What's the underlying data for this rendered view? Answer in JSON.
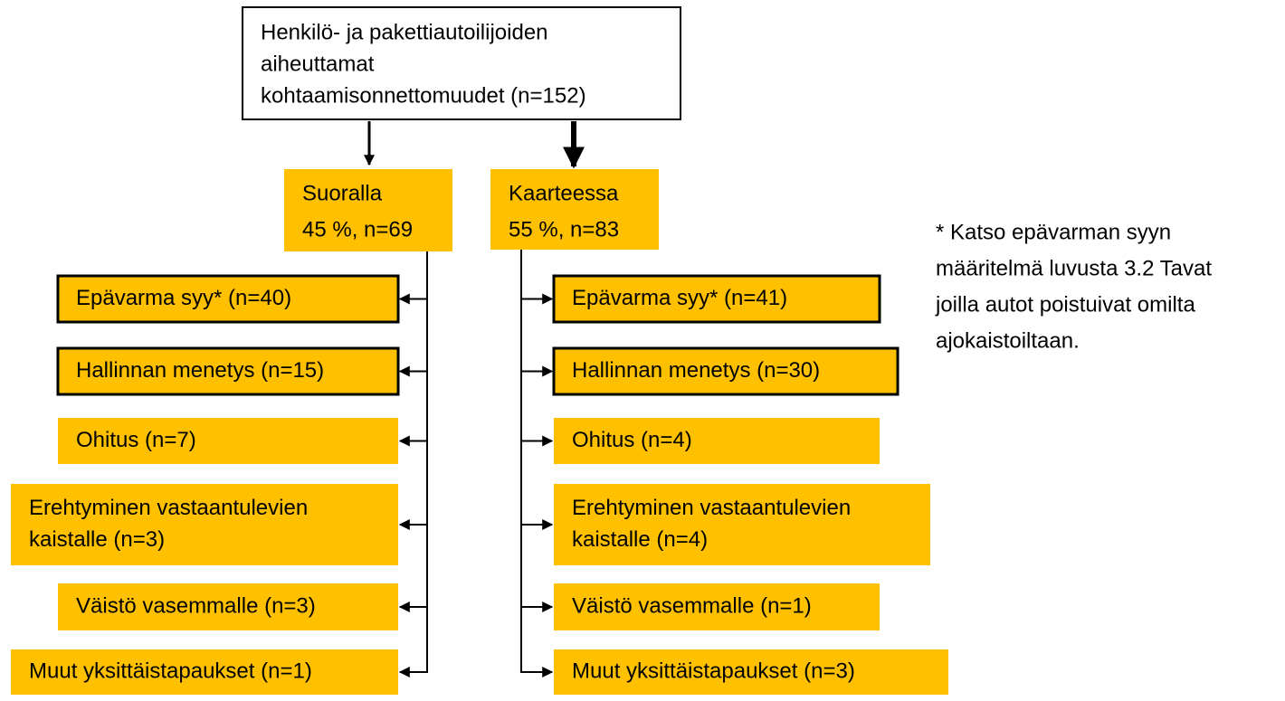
{
  "root": {
    "lines": [
      "Henkilö- ja pakettiautoilijoiden",
      "aiheuttamat",
      "kohtaamisonnettomuudet (n=152)"
    ]
  },
  "branches": [
    {
      "lines": [
        "Suoralla",
        "45 %, n=69"
      ],
      "items": [
        {
          "lines": [
            "Epävarma syy* (n=40)"
          ]
        },
        {
          "lines": [
            "Hallinnan menetys (n=15)"
          ]
        },
        {
          "lines": [
            "Ohitus (n=7)"
          ]
        },
        {
          "lines": [
            "Erehtyminen vastaantulevien",
            "kaistalle (n=3)"
          ]
        },
        {
          "lines": [
            "Väistö vasemmalle (n=3)"
          ]
        },
        {
          "lines": [
            "Muut yksittäistapaukset (n=1)"
          ]
        }
      ]
    },
    {
      "lines": [
        "Kaarteessa",
        "55 %, n=83"
      ],
      "items": [
        {
          "lines": [
            "Epävarma syy* (n=41)"
          ]
        },
        {
          "lines": [
            "Hallinnan menetys (n=30)"
          ]
        },
        {
          "lines": [
            "Ohitus (n=4)"
          ]
        },
        {
          "lines": [
            "Erehtyminen vastaantulevien",
            "kaistalle (n=4)"
          ]
        },
        {
          "lines": [
            "Väistö vasemmalle (n=1)"
          ]
        },
        {
          "lines": [
            "Muut yksittäistapaukset (n=3)"
          ]
        }
      ]
    }
  ],
  "note": {
    "lines": [
      "* Katso epävarman syyn",
      "määritelmä luvusta 3.2 Tavat",
      "joilla autot poistuivat omilta",
      "ajokaistoiltaan."
    ]
  }
}
